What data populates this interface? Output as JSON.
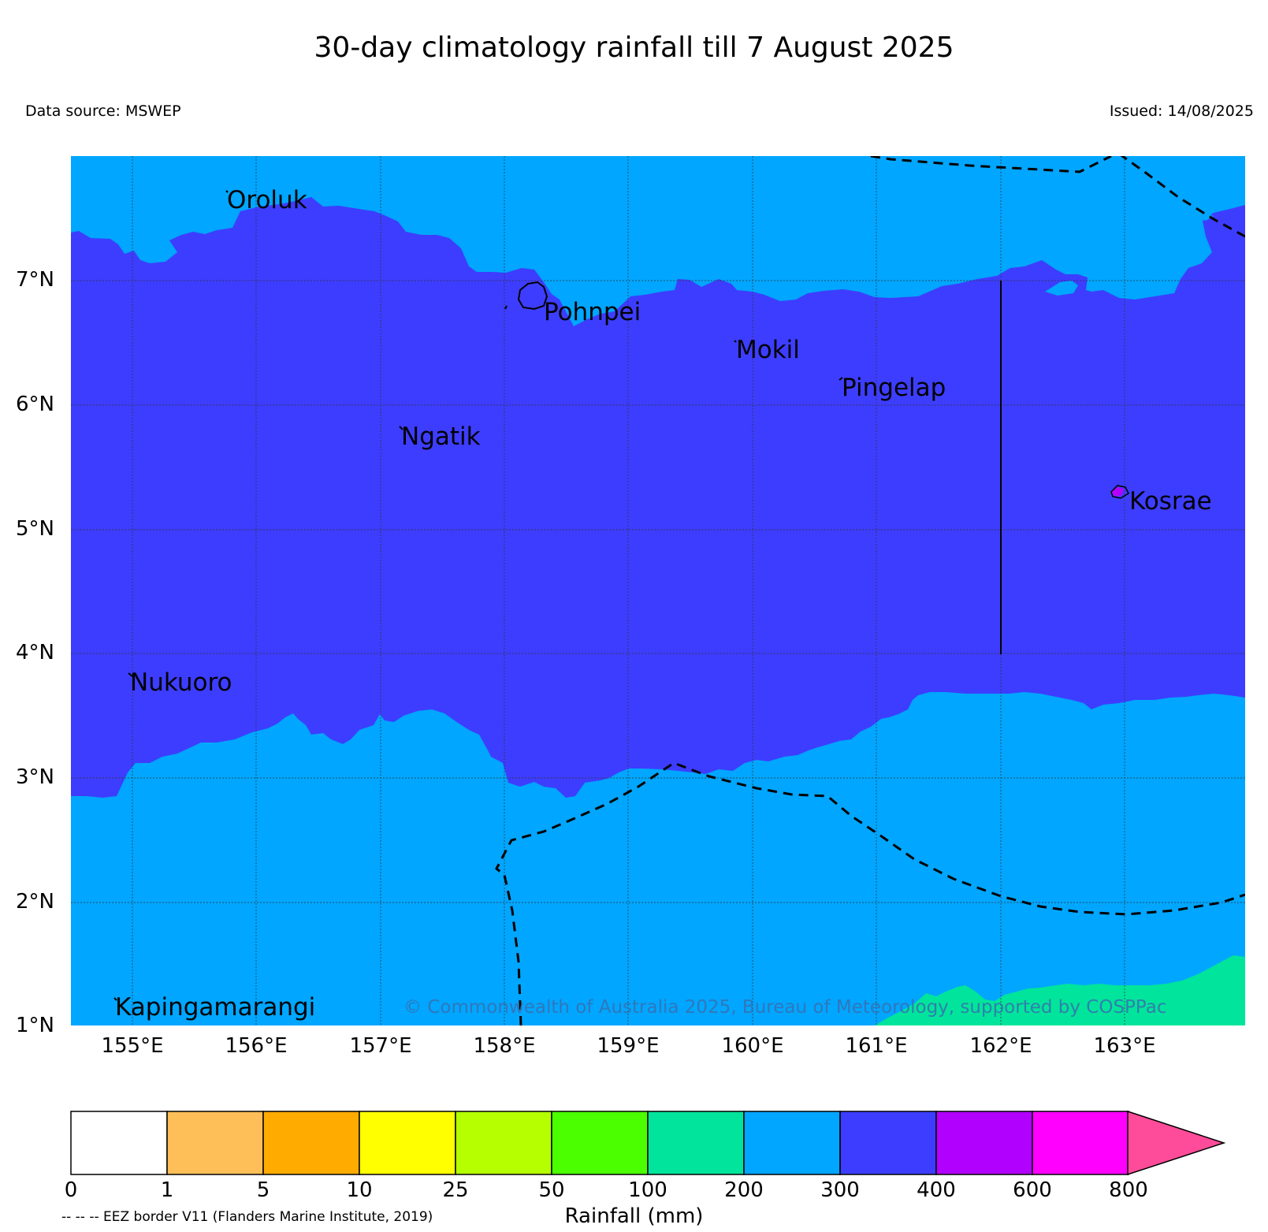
{
  "title": "30-day climatology rainfall till 7 August 2025",
  "data_source": "Data source: MSWEP",
  "issued": "Issued: 14/08/2025",
  "copyright": "© Commonwealth of Australia 2025, Bureau of Meteorology, supported by COSPPac",
  "lat_labels": [
    "7°N",
    "6°N",
    "5°N",
    "4°N",
    "3°N",
    "2°N",
    "1°N"
  ],
  "lon_labels": [
    "155°E",
    "156°E",
    "157°E",
    "158°E",
    "159°E",
    "160°E",
    "161°E",
    "162°E",
    "163°E"
  ],
  "places": [
    "Oroluk",
    "Pohnpei",
    "Mokil",
    "Pingelap",
    "Ngatik",
    "Kosrae",
    "Nukuoro",
    "Kapingamarangi"
  ],
  "colorbar": {
    "title": "Rainfall (mm)",
    "ticks": [
      "0",
      "1",
      "5",
      "10",
      "25",
      "50",
      "100",
      "200",
      "300",
      "400",
      "600",
      "800"
    ],
    "colors": [
      "#ffffff",
      "#ffbf58",
      "#ffab00",
      "#ffff00",
      "#b5ff00",
      "#4cff00",
      "#00e59b",
      "#00a6ff",
      "#3d3dff",
      "#b200ff",
      "#ff00ff",
      "#ff4c9a"
    ]
  },
  "map_colors": {
    "band_200_300": "#00a6ff",
    "band_300_400": "#3d3dff",
    "band_100_200": "#00e59b",
    "band_400_600": "#b200ff"
  },
  "eez_note": "-- -- -- EEZ border V11 (Flanders Marine Institute, 2019)"
}
